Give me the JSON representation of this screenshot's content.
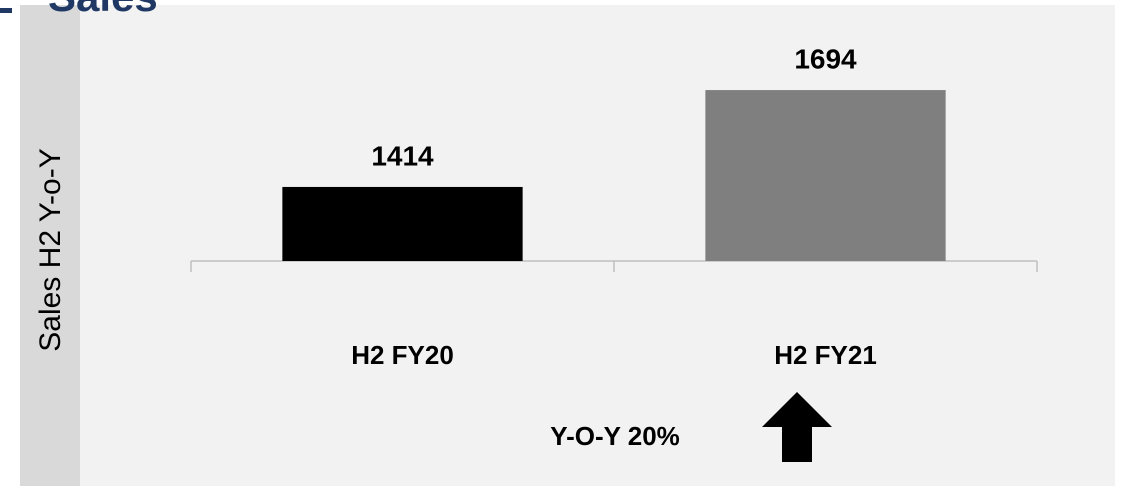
{
  "chart_data": {
    "type": "bar",
    "title": "Sales",
    "ylabel": "Sales H2 Y-o-Y",
    "categories": [
      "H2 FY20",
      "H2 FY21"
    ],
    "values": [
      1414,
      1694
    ],
    "colors": [
      "#000000",
      "#7f7f7f"
    ],
    "ylim": [
      1200,
      1830
    ],
    "annotation": "Y-O-Y 20%"
  }
}
